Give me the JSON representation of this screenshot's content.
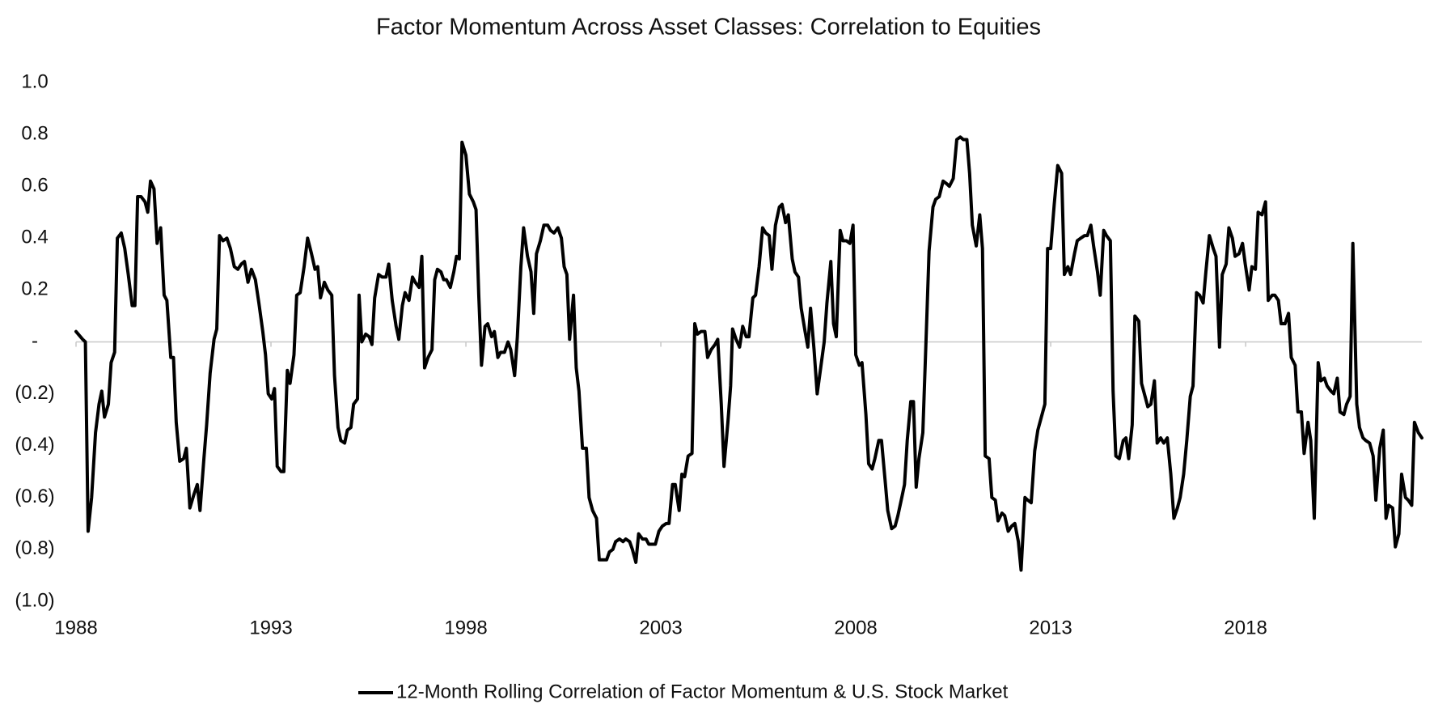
{
  "chart_data": {
    "type": "line",
    "title": "Factor Momentum Across Asset Classes: Correlation to Equities",
    "legend": "bottom",
    "xlim": [
      1988,
      2022.52
    ],
    "xticks": [
      1988,
      1993,
      1998,
      2003,
      2008,
      2013,
      2018
    ],
    "ylim": [
      -1,
      1
    ],
    "yticks": [
      {
        "value": 1,
        "label": "1.0"
      },
      {
        "value": 0.8,
        "label": "0.8"
      },
      {
        "value": 0.6,
        "label": "0.6"
      },
      {
        "value": 0.4,
        "label": "0.4"
      },
      {
        "value": 0.2,
        "label": "0.2"
      },
      {
        "value": 0,
        "label": "-"
      },
      {
        "value": -0.2,
        "label": "(0.2)"
      },
      {
        "value": -0.4,
        "label": "(0.4)"
      },
      {
        "value": -0.6,
        "label": "(0.6)"
      },
      {
        "value": -0.8,
        "label": "(0.8)"
      },
      {
        "value": -1,
        "label": "(1.0)"
      }
    ],
    "x": [
      1988.0,
      1988.17,
      1988.24,
      1988.31,
      1988.4,
      1988.5,
      1988.59,
      1988.66,
      1988.73,
      1988.83,
      1988.9,
      1988.99,
      1989.06,
      1989.16,
      1989.25,
      1989.34,
      1989.44,
      1989.51,
      1989.58,
      1989.67,
      1989.77,
      1989.84,
      1989.91,
      1990.0,
      1990.08,
      1990.17,
      1990.26,
      1990.33,
      1990.43,
      1990.5,
      1990.57,
      1990.66,
      1990.76,
      1990.83,
      1990.92,
      1991.02,
      1991.11,
      1991.18,
      1991.28,
      1991.35,
      1991.44,
      1991.54,
      1991.61,
      1991.68,
      1991.77,
      1991.87,
      1991.96,
      1992.06,
      1992.15,
      1992.24,
      1992.32,
      1992.41,
      1992.5,
      1992.6,
      1992.69,
      1992.79,
      1992.86,
      1992.93,
      1993.02,
      1993.09,
      1993.16,
      1993.26,
      1993.33,
      1993.42,
      1993.49,
      1993.59,
      1993.66,
      1993.75,
      1993.85,
      1993.94,
      1994.04,
      1994.13,
      1994.2,
      1994.27,
      1994.37,
      1994.46,
      1994.56,
      1994.63,
      1994.72,
      1994.79,
      1994.89,
      1994.96,
      1995.05,
      1995.12,
      1995.22,
      1995.26,
      1995.33,
      1995.43,
      1995.52,
      1995.59,
      1995.66,
      1995.76,
      1995.85,
      1995.95,
      1996.02,
      1996.11,
      1996.21,
      1996.28,
      1996.37,
      1996.44,
      1996.54,
      1996.63,
      1996.7,
      1996.8,
      1996.87,
      1996.94,
      1997.03,
      1997.13,
      1997.2,
      1997.27,
      1997.36,
      1997.43,
      1997.5,
      1997.6,
      1997.69,
      1997.76,
      1997.83,
      1997.9,
      1998.0,
      1998.09,
      1998.19,
      1998.26,
      1998.33,
      1998.4,
      1998.49,
      1998.56,
      1998.66,
      1998.73,
      1998.82,
      1998.89,
      1998.99,
      1999.08,
      1999.15,
      1999.25,
      1999.32,
      1999.41,
      1999.48,
      1999.58,
      1999.67,
      1999.74,
      1999.81,
      1999.91,
      2000.0,
      2000.1,
      2000.17,
      2000.26,
      2000.36,
      2000.45,
      2000.52,
      2000.59,
      2000.66,
      2000.76,
      2000.83,
      2000.9,
      2000.99,
      2001.09,
      2001.16,
      2001.25,
      2001.35,
      2001.42,
      2001.51,
      2001.61,
      2001.68,
      2001.77,
      2001.84,
      2001.94,
      2002.03,
      2002.1,
      2002.2,
      2002.27,
      2002.36,
      2002.43,
      2002.53,
      2002.62,
      2002.69,
      2002.79,
      2002.86,
      2002.95,
      2003.04,
      2003.14,
      2003.21,
      2003.3,
      2003.37,
      2003.47,
      2003.54,
      2003.61,
      2003.7,
      2003.8,
      2003.87,
      2003.94,
      2004.03,
      2004.13,
      2004.2,
      2004.29,
      2004.39,
      2004.46,
      2004.55,
      2004.62,
      2004.72,
      2004.79,
      2004.84,
      2004.93,
      2005.02,
      2005.1,
      2005.19,
      2005.26,
      2005.36,
      2005.43,
      2005.52,
      2005.61,
      2005.69,
      2005.78,
      2005.85,
      2005.94,
      2006.04,
      2006.11,
      2006.2,
      2006.27,
      2006.37,
      2006.44,
      2006.53,
      2006.6,
      2006.7,
      2006.77,
      2006.84,
      2006.93,
      2007.01,
      2007.1,
      2007.19,
      2007.26,
      2007.36,
      2007.43,
      2007.5,
      2007.6,
      2007.67,
      2007.76,
      2007.85,
      2007.93,
      2008.0,
      2008.09,
      2008.16,
      2008.26,
      2008.33,
      2008.42,
      2008.49,
      2008.59,
      2008.66,
      2008.75,
      2008.82,
      2008.92,
      2009.01,
      2009.08,
      2009.18,
      2009.25,
      2009.32,
      2009.41,
      2009.48,
      2009.55,
      2009.62,
      2009.72,
      2009.81,
      2009.88,
      2009.98,
      2010.05,
      2010.14,
      2010.24,
      2010.33,
      2010.4,
      2010.5,
      2010.59,
      2010.68,
      2010.76,
      2010.85,
      2010.92,
      2010.99,
      2011.09,
      2011.18,
      2011.25,
      2011.32,
      2011.42,
      2011.49,
      2011.58,
      2011.65,
      2011.75,
      2011.82,
      2011.91,
      2012.0,
      2012.08,
      2012.17,
      2012.24,
      2012.34,
      2012.41,
      2012.5,
      2012.59,
      2012.67,
      2012.76,
      2012.85,
      2012.92,
      2013.0,
      2013.09,
      2013.18,
      2013.28,
      2013.35,
      2013.44,
      2013.51,
      2013.61,
      2013.68,
      2013.77,
      2013.87,
      2013.94,
      2014.03,
      2014.1,
      2014.2,
      2014.27,
      2014.36,
      2014.43,
      2014.53,
      2014.6,
      2014.67,
      2014.76,
      2014.86,
      2014.93,
      2015.0,
      2015.09,
      2015.16,
      2015.26,
      2015.33,
      2015.42,
      2015.49,
      2015.57,
      2015.66,
      2015.73,
      2015.82,
      2015.9,
      2015.99,
      2016.08,
      2016.16,
      2016.25,
      2016.32,
      2016.41,
      2016.49,
      2016.58,
      2016.65,
      2016.74,
      2016.82,
      2016.91,
      2016.98,
      2017.07,
      2017.17,
      2017.24,
      2017.33,
      2017.4,
      2017.5,
      2017.57,
      2017.66,
      2017.73,
      2017.83,
      2017.92,
      2017.99,
      2018.09,
      2018.16,
      2018.25,
      2018.32,
      2018.42,
      2018.51,
      2018.58,
      2018.68,
      2018.75,
      2018.84,
      2018.91,
      2019.01,
      2019.1,
      2019.17,
      2019.27,
      2019.34,
      2019.43,
      2019.5,
      2019.6,
      2019.67,
      2019.76,
      2019.86,
      2019.93,
      2020.02,
      2020.09,
      2020.19,
      2020.26,
      2020.35,
      2020.42,
      2020.52,
      2020.59,
      2020.68,
      2020.75,
      2020.85,
      2020.92,
      2021.01,
      2021.08,
      2021.18,
      2021.27,
      2021.34,
      2021.44,
      2021.53,
      2021.6,
      2021.67,
      2021.77,
      2021.84,
      2021.93,
      2022.0,
      2022.1,
      2022.17,
      2022.26,
      2022.33,
      2022.43,
      2022.52
    ],
    "series": [
      {
        "name": "12-Month Rolling Correlation of Factor Momentum & U.S. Stock Market",
        "color": "#000000",
        "values": [
          0.04,
          0.01,
          0.0,
          -0.73,
          -0.6,
          -0.35,
          -0.24,
          -0.19,
          -0.29,
          -0.24,
          -0.08,
          -0.04,
          0.4,
          0.42,
          0.36,
          0.26,
          0.14,
          0.14,
          0.56,
          0.56,
          0.54,
          0.5,
          0.62,
          0.59,
          0.38,
          0.44,
          0.18,
          0.16,
          -0.06,
          -0.06,
          -0.31,
          -0.46,
          -0.45,
          -0.41,
          -0.64,
          -0.59,
          -0.55,
          -0.65,
          -0.45,
          -0.32,
          -0.12,
          0.01,
          0.05,
          0.41,
          0.39,
          0.4,
          0.36,
          0.29,
          0.28,
          0.3,
          0.31,
          0.23,
          0.28,
          0.24,
          0.15,
          0.04,
          -0.05,
          -0.2,
          -0.22,
          -0.18,
          -0.48,
          -0.5,
          -0.5,
          -0.11,
          -0.16,
          -0.05,
          0.18,
          0.19,
          0.29,
          0.4,
          0.34,
          0.28,
          0.29,
          0.17,
          0.23,
          0.2,
          0.18,
          -0.13,
          -0.33,
          -0.38,
          -0.39,
          -0.34,
          -0.33,
          -0.24,
          -0.22,
          0.18,
          0.0,
          0.03,
          0.02,
          -0.01,
          0.17,
          0.26,
          0.25,
          0.25,
          0.3,
          0.16,
          0.06,
          0.01,
          0.14,
          0.19,
          0.16,
          0.25,
          0.23,
          0.21,
          0.33,
          -0.1,
          -0.06,
          -0.03,
          0.24,
          0.28,
          0.27,
          0.24,
          0.24,
          0.21,
          0.27,
          0.33,
          0.32,
          0.77,
          0.72,
          0.57,
          0.54,
          0.51,
          0.18,
          -0.09,
          0.06,
          0.07,
          0.02,
          0.04,
          -0.06,
          -0.04,
          -0.04,
          0.0,
          -0.03,
          -0.13,
          0.02,
          0.29,
          0.44,
          0.33,
          0.27,
          0.11,
          0.34,
          0.39,
          0.45,
          0.45,
          0.43,
          0.42,
          0.44,
          0.4,
          0.29,
          0.26,
          0.01,
          0.18,
          -0.1,
          -0.19,
          -0.41,
          -0.41,
          -0.6,
          -0.65,
          -0.68,
          -0.84,
          -0.84,
          -0.84,
          -0.81,
          -0.8,
          -0.77,
          -0.76,
          -0.77,
          -0.76,
          -0.77,
          -0.8,
          -0.85,
          -0.74,
          -0.76,
          -0.76,
          -0.78,
          -0.78,
          -0.78,
          -0.73,
          -0.71,
          -0.7,
          -0.7,
          -0.55,
          -0.55,
          -0.65,
          -0.51,
          -0.52,
          -0.44,
          -0.43,
          0.07,
          0.03,
          0.04,
          0.04,
          -0.06,
          -0.03,
          -0.01,
          0.01,
          -0.24,
          -0.48,
          -0.31,
          -0.17,
          0.05,
          0.01,
          -0.02,
          0.06,
          0.02,
          0.02,
          0.17,
          0.18,
          0.29,
          0.44,
          0.42,
          0.41,
          0.28,
          0.45,
          0.52,
          0.53,
          0.46,
          0.49,
          0.32,
          0.27,
          0.25,
          0.13,
          0.04,
          -0.02,
          0.13,
          -0.03,
          -0.2,
          -0.1,
          0.0,
          0.15,
          0.31,
          0.07,
          0.02,
          0.43,
          0.39,
          0.39,
          0.38,
          0.45,
          -0.05,
          -0.09,
          -0.08,
          -0.28,
          -0.47,
          -0.49,
          -0.45,
          -0.38,
          -0.38,
          -0.53,
          -0.65,
          -0.72,
          -0.71,
          -0.67,
          -0.6,
          -0.55,
          -0.38,
          -0.23,
          -0.23,
          -0.56,
          -0.45,
          -0.35,
          0.04,
          0.35,
          0.52,
          0.55,
          0.56,
          0.62,
          0.61,
          0.6,
          0.63,
          0.78,
          0.79,
          0.78,
          0.78,
          0.65,
          0.45,
          0.37,
          0.49,
          0.36,
          -0.44,
          -0.45,
          -0.6,
          -0.61,
          -0.69,
          -0.66,
          -0.67,
          -0.73,
          -0.71,
          -0.7,
          -0.77,
          -0.88,
          -0.6,
          -0.61,
          -0.62,
          -0.42,
          -0.34,
          -0.29,
          -0.24,
          0.36,
          0.36,
          0.53,
          0.68,
          0.65,
          0.26,
          0.29,
          0.26,
          0.34,
          0.39,
          0.4,
          0.41,
          0.41,
          0.45,
          0.37,
          0.27,
          0.18,
          0.43,
          0.41,
          0.39,
          -0.19,
          -0.44,
          -0.45,
          -0.38,
          -0.37,
          -0.45,
          -0.32,
          0.1,
          0.08,
          -0.16,
          -0.21,
          -0.25,
          -0.24,
          -0.15,
          -0.39,
          -0.37,
          -0.39,
          -0.37,
          -0.51,
          -0.68,
          -0.64,
          -0.6,
          -0.51,
          -0.38,
          -0.21,
          -0.17,
          0.19,
          0.18,
          0.15,
          0.27,
          0.41,
          0.36,
          0.33,
          -0.02,
          0.26,
          0.3,
          0.44,
          0.4,
          0.33,
          0.34,
          0.38,
          0.3,
          0.2,
          0.29,
          0.28,
          0.5,
          0.49,
          0.54,
          0.16,
          0.18,
          0.18,
          0.16,
          0.07,
          0.07,
          0.11,
          -0.06,
          -0.09,
          -0.27,
          -0.27,
          -0.43,
          -0.31,
          -0.38,
          -0.68,
          -0.08,
          -0.15,
          -0.14,
          -0.17,
          -0.19,
          -0.2,
          -0.14,
          -0.27,
          -0.28,
          -0.24,
          -0.21,
          0.38,
          -0.24,
          -0.33,
          -0.37,
          -0.38,
          -0.39,
          -0.44,
          -0.61,
          -0.41,
          -0.34,
          -0.68,
          -0.63,
          -0.64,
          -0.79,
          -0.74,
          -0.51,
          -0.6,
          -0.61,
          -0.63,
          -0.31,
          -0.35,
          -0.37
        ]
      }
    ]
  }
}
